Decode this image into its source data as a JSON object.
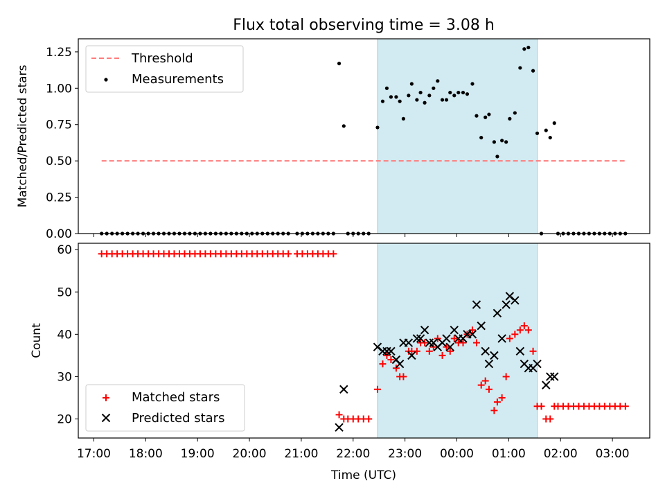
{
  "title": "Flux total observing time = 3.08 h",
  "colors": {
    "threshold": "#ff7b7b",
    "measurement": "#000000",
    "matched": "#ff0000",
    "predicted": "#000000",
    "highlight": "#add8e6"
  },
  "chart_data": [
    {
      "type": "scatter",
      "ylabel": "Matched/Predicted stars",
      "ylim": [
        0,
        1.34
      ],
      "yticks": [
        0,
        0.25,
        0.5,
        0.75,
        1.0,
        1.25
      ],
      "ytick_labels": [
        "0.00",
        "0.25",
        "0.50",
        "0.75",
        "1.00",
        "1.25"
      ],
      "xlim_hours": [
        16.7,
        27.72
      ],
      "highlight_span_hours": [
        22.47,
        25.55
      ],
      "legend": {
        "position": "top-left",
        "entries": [
          {
            "label": "Threshold",
            "style": "dashed-line"
          },
          {
            "label": "Measurements",
            "style": "dot"
          }
        ]
      },
      "threshold": {
        "value": 0.5,
        "x_start": 17.15,
        "x_end": 27.25
      },
      "series": [
        {
          "name": "Measurements",
          "points": [
            [
              17.15,
              0
            ],
            [
              17.25,
              0
            ],
            [
              17.35,
              0
            ],
            [
              17.45,
              0
            ],
            [
              17.55,
              0
            ],
            [
              17.65,
              0
            ],
            [
              17.75,
              0
            ],
            [
              17.85,
              0
            ],
            [
              17.95,
              0
            ],
            [
              18.05,
              0
            ],
            [
              18.15,
              0
            ],
            [
              18.25,
              0
            ],
            [
              18.35,
              0
            ],
            [
              18.45,
              0
            ],
            [
              18.55,
              0
            ],
            [
              18.65,
              0
            ],
            [
              18.75,
              0
            ],
            [
              18.85,
              0
            ],
            [
              18.95,
              0
            ],
            [
              19.05,
              0
            ],
            [
              19.15,
              0
            ],
            [
              19.25,
              0
            ],
            [
              19.35,
              0
            ],
            [
              19.45,
              0
            ],
            [
              19.55,
              0
            ],
            [
              19.65,
              0
            ],
            [
              19.75,
              0
            ],
            [
              19.85,
              0
            ],
            [
              19.95,
              0
            ],
            [
              20.05,
              0
            ],
            [
              20.15,
              0
            ],
            [
              20.25,
              0
            ],
            [
              20.35,
              0
            ],
            [
              20.45,
              0
            ],
            [
              20.55,
              0
            ],
            [
              20.65,
              0
            ],
            [
              20.75,
              0
            ],
            [
              20.92,
              0
            ],
            [
              21.02,
              0
            ],
            [
              21.12,
              0
            ],
            [
              21.22,
              0
            ],
            [
              21.32,
              0
            ],
            [
              21.42,
              0
            ],
            [
              21.52,
              0
            ],
            [
              21.62,
              0
            ],
            [
              21.73,
              1.17
            ],
            [
              21.82,
              0.74
            ],
            [
              21.9,
              0
            ],
            [
              22.0,
              0
            ],
            [
              22.1,
              0
            ],
            [
              22.2,
              0
            ],
            [
              22.3,
              0
            ],
            [
              22.47,
              0.73
            ],
            [
              22.57,
              0.91
            ],
            [
              22.65,
              1.0
            ],
            [
              22.73,
              0.94
            ],
            [
              22.83,
              0.94
            ],
            [
              22.9,
              0.91
            ],
            [
              22.97,
              0.79
            ],
            [
              23.07,
              0.95
            ],
            [
              23.13,
              1.03
            ],
            [
              23.23,
              0.92
            ],
            [
              23.3,
              0.97
            ],
            [
              23.38,
              0.9
            ],
            [
              23.47,
              0.95
            ],
            [
              23.55,
              1.0
            ],
            [
              23.63,
              1.05
            ],
            [
              23.72,
              0.92
            ],
            [
              23.8,
              0.92
            ],
            [
              23.87,
              0.97
            ],
            [
              23.95,
              0.95
            ],
            [
              24.03,
              0.97
            ],
            [
              24.12,
              0.97
            ],
            [
              24.2,
              0.96
            ],
            [
              24.3,
              1.03
            ],
            [
              24.38,
              0.81
            ],
            [
              24.47,
              0.66
            ],
            [
              24.55,
              0.8
            ],
            [
              24.62,
              0.82
            ],
            [
              24.72,
              0.63
            ],
            [
              24.78,
              0.53
            ],
            [
              24.87,
              0.64
            ],
            [
              24.95,
              0.63
            ],
            [
              25.02,
              0.79
            ],
            [
              25.12,
              0.83
            ],
            [
              25.22,
              1.14
            ],
            [
              25.3,
              1.27
            ],
            [
              25.38,
              1.28
            ],
            [
              25.47,
              1.12
            ],
            [
              25.55,
              0.69
            ],
            [
              25.63,
              0
            ],
            [
              25.72,
              0.71
            ],
            [
              25.8,
              0.66
            ],
            [
              25.88,
              0.76
            ],
            [
              25.95,
              0
            ],
            [
              26.05,
              0
            ],
            [
              26.15,
              0
            ],
            [
              26.25,
              0
            ],
            [
              26.35,
              0
            ],
            [
              26.45,
              0
            ],
            [
              26.55,
              0
            ],
            [
              26.65,
              0
            ],
            [
              26.75,
              0
            ],
            [
              26.85,
              0
            ],
            [
              26.95,
              0
            ],
            [
              27.05,
              0
            ],
            [
              27.15,
              0
            ],
            [
              27.25,
              0
            ]
          ]
        }
      ]
    },
    {
      "type": "scatter",
      "xlabel": "Time (UTC)",
      "ylabel": "Count",
      "ylim": [
        15.5,
        61.5
      ],
      "yticks": [
        20,
        30,
        40,
        50,
        60
      ],
      "ytick_labels": [
        "20",
        "30",
        "40",
        "50",
        "60"
      ],
      "xlim_hours": [
        16.7,
        27.72
      ],
      "xticks_hours": [
        17,
        18,
        19,
        20,
        21,
        22,
        23,
        24,
        25,
        26,
        27
      ],
      "xtick_labels": [
        "17:00",
        "18:00",
        "19:00",
        "20:00",
        "21:00",
        "22:00",
        "23:00",
        "00:00",
        "01:00",
        "02:00",
        "03:00"
      ],
      "highlight_span_hours": [
        22.47,
        25.55
      ],
      "legend": {
        "position": "bottom-left",
        "entries": [
          {
            "label": "Matched stars",
            "style": "plus"
          },
          {
            "label": "Predicted stars",
            "style": "cross"
          }
        ]
      },
      "series": [
        {
          "name": "Matched stars",
          "points": [
            [
              17.15,
              59
            ],
            [
              17.25,
              59
            ],
            [
              17.35,
              59
            ],
            [
              17.45,
              59
            ],
            [
              17.55,
              59
            ],
            [
              17.65,
              59
            ],
            [
              17.75,
              59
            ],
            [
              17.85,
              59
            ],
            [
              17.95,
              59
            ],
            [
              18.05,
              59
            ],
            [
              18.15,
              59
            ],
            [
              18.25,
              59
            ],
            [
              18.35,
              59
            ],
            [
              18.45,
              59
            ],
            [
              18.55,
              59
            ],
            [
              18.65,
              59
            ],
            [
              18.75,
              59
            ],
            [
              18.85,
              59
            ],
            [
              18.95,
              59
            ],
            [
              19.05,
              59
            ],
            [
              19.15,
              59
            ],
            [
              19.25,
              59
            ],
            [
              19.35,
              59
            ],
            [
              19.45,
              59
            ],
            [
              19.55,
              59
            ],
            [
              19.65,
              59
            ],
            [
              19.75,
              59
            ],
            [
              19.85,
              59
            ],
            [
              19.95,
              59
            ],
            [
              20.05,
              59
            ],
            [
              20.15,
              59
            ],
            [
              20.25,
              59
            ],
            [
              20.35,
              59
            ],
            [
              20.45,
              59
            ],
            [
              20.55,
              59
            ],
            [
              20.65,
              59
            ],
            [
              20.75,
              59
            ],
            [
              20.92,
              59
            ],
            [
              21.02,
              59
            ],
            [
              21.12,
              59
            ],
            [
              21.22,
              59
            ],
            [
              21.32,
              59
            ],
            [
              21.42,
              59
            ],
            [
              21.52,
              59
            ],
            [
              21.62,
              59
            ],
            [
              21.73,
              21
            ],
            [
              21.82,
              20
            ],
            [
              21.9,
              20
            ],
            [
              22.0,
              20
            ],
            [
              22.1,
              20
            ],
            [
              22.2,
              20
            ],
            [
              22.3,
              20
            ],
            [
              22.47,
              27
            ],
            [
              22.57,
              33
            ],
            [
              22.65,
              35
            ],
            [
              22.73,
              34
            ],
            [
              22.83,
              32
            ],
            [
              22.9,
              30
            ],
            [
              22.97,
              30
            ],
            [
              23.07,
              36
            ],
            [
              23.13,
              36
            ],
            [
              23.23,
              36
            ],
            [
              23.3,
              38
            ],
            [
              23.38,
              38
            ],
            [
              23.47,
              36
            ],
            [
              23.55,
              37
            ],
            [
              23.63,
              39
            ],
            [
              23.72,
              35
            ],
            [
              23.8,
              37
            ],
            [
              23.87,
              36
            ],
            [
              23.95,
              39
            ],
            [
              24.03,
              38
            ],
            [
              24.12,
              38
            ],
            [
              24.2,
              40
            ],
            [
              24.3,
              41
            ],
            [
              24.38,
              38
            ],
            [
              24.47,
              28
            ],
            [
              24.55,
              29
            ],
            [
              24.62,
              27
            ],
            [
              24.72,
              22
            ],
            [
              24.78,
              24
            ],
            [
              24.87,
              25
            ],
            [
              24.95,
              30
            ],
            [
              25.02,
              39
            ],
            [
              25.12,
              40
            ],
            [
              25.22,
              41
            ],
            [
              25.3,
              42
            ],
            [
              25.38,
              41
            ],
            [
              25.47,
              36
            ],
            [
              25.55,
              23
            ],
            [
              25.63,
              23
            ],
            [
              25.72,
              20
            ],
            [
              25.8,
              20
            ],
            [
              25.88,
              23
            ],
            [
              25.95,
              23
            ],
            [
              26.05,
              23
            ],
            [
              26.15,
              23
            ],
            [
              26.25,
              23
            ],
            [
              26.35,
              23
            ],
            [
              26.45,
              23
            ],
            [
              26.55,
              23
            ],
            [
              26.65,
              23
            ],
            [
              26.75,
              23
            ],
            [
              26.85,
              23
            ],
            [
              26.95,
              23
            ],
            [
              27.05,
              23
            ],
            [
              27.15,
              23
            ],
            [
              27.25,
              23
            ]
          ]
        },
        {
          "name": "Predicted stars",
          "points": [
            [
              21.73,
              18
            ],
            [
              21.82,
              27
            ],
            [
              22.47,
              37
            ],
            [
              22.57,
              36
            ],
            [
              22.65,
              36
            ],
            [
              22.73,
              36
            ],
            [
              22.83,
              34
            ],
            [
              22.9,
              33
            ],
            [
              22.97,
              38
            ],
            [
              23.07,
              38
            ],
            [
              23.13,
              35
            ],
            [
              23.23,
              39
            ],
            [
              23.3,
              39
            ],
            [
              23.38,
              41
            ],
            [
              23.47,
              38
            ],
            [
              23.55,
              38
            ],
            [
              23.63,
              37
            ],
            [
              23.72,
              38
            ],
            [
              23.8,
              39
            ],
            [
              23.87,
              37
            ],
            [
              23.95,
              41
            ],
            [
              24.03,
              39
            ],
            [
              24.12,
              39
            ],
            [
              24.2,
              40
            ],
            [
              24.3,
              40
            ],
            [
              24.38,
              47
            ],
            [
              24.47,
              42
            ],
            [
              24.55,
              36
            ],
            [
              24.62,
              33
            ],
            [
              24.72,
              35
            ],
            [
              24.78,
              45
            ],
            [
              24.87,
              39
            ],
            [
              24.95,
              47
            ],
            [
              25.02,
              49
            ],
            [
              25.12,
              48
            ],
            [
              25.22,
              36
            ],
            [
              25.3,
              33
            ],
            [
              25.38,
              32
            ],
            [
              25.47,
              32
            ],
            [
              25.55,
              33
            ],
            [
              25.72,
              28
            ],
            [
              25.8,
              30
            ],
            [
              25.88,
              30
            ]
          ]
        }
      ]
    }
  ]
}
